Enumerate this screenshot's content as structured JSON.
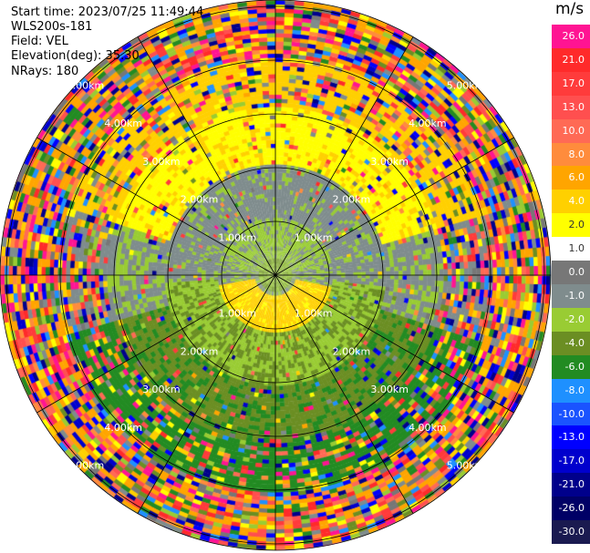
{
  "info": {
    "start_time": "Start time: 2023/07/25 11:49:44",
    "instrument": "WLS200s-181",
    "field": "Field: VEL",
    "elevation": "Elevation(deg): 35.30",
    "nrays": "NRays: 180"
  },
  "range_labels": [
    "1.00km",
    "2.00km",
    "3.00km",
    "4.00km",
    "5.00km"
  ],
  "colorbar": {
    "units": "m/s",
    "labels": [
      "26.0",
      "21.0",
      "17.0",
      "13.0",
      "10.0",
      "8.0",
      "6.0",
      "4.0",
      "2.0",
      "1.0",
      "0.0",
      "-1.0",
      "-2.0",
      "-4.0",
      "-6.0",
      "-8.0",
      "-10.0",
      "-13.0",
      "-17.0",
      "-21.0",
      "-26.0",
      "-30.0"
    ],
    "colors": [
      "#ff1493",
      "#ff2a2a",
      "#ff3b3b",
      "#ff4f4f",
      "#ff6a55",
      "#ff8c3c",
      "#ffa500",
      "#ffd000",
      "#ffff00",
      "#ffffff",
      "#777777",
      "#7f8c8d",
      "#99cc33",
      "#6b8e23",
      "#228b22",
      "#1e90ff",
      "#1a53ff",
      "#0000ff",
      "#0000cd",
      "#00008b",
      "#000066",
      "#1a1a50"
    ]
  },
  "chart_data": {
    "type": "heatmap",
    "title": "",
    "field": "VEL",
    "units": "m/s",
    "range_rings_km": [
      1,
      2,
      3,
      4,
      5
    ],
    "nrays": 180,
    "elevation_deg": 35.3,
    "colorbar_ticks": [
      26.0,
      21.0,
      17.0,
      13.0,
      10.0,
      8.0,
      6.0,
      4.0,
      2.0,
      1.0,
      0.0,
      -1.0,
      -2.0,
      -4.0,
      -6.0,
      -8.0,
      -10.0,
      -13.0,
      -17.0,
      -21.0,
      -26.0,
      -30.0
    ]
  }
}
